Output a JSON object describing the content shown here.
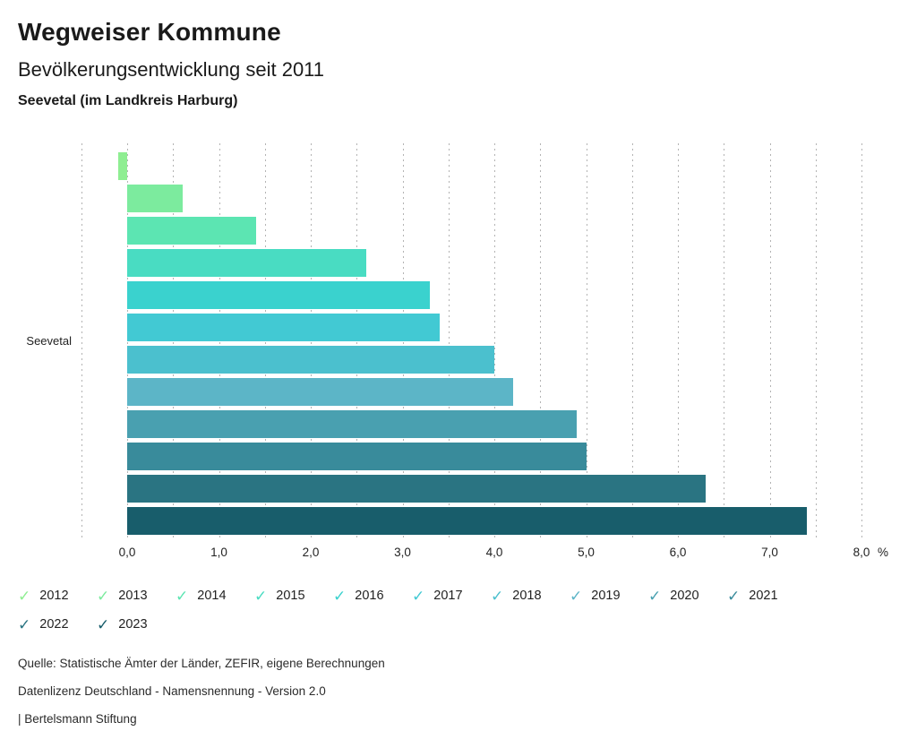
{
  "header": {
    "title": "Wegweiser Kommune",
    "subtitle": "Bevölkerungsentwicklung seit 2011",
    "region": "Seevetal (im Landkreis Harburg)"
  },
  "chart_data": {
    "type": "bar",
    "orientation": "horizontal",
    "title": "Bevölkerungsentwicklung seit 2011",
    "group_label": "Seevetal",
    "categories": [
      "2012",
      "2013",
      "2014",
      "2015",
      "2016",
      "2017",
      "2018",
      "2019",
      "2020",
      "2021",
      "2022",
      "2023"
    ],
    "values": [
      -0.1,
      0.6,
      1.4,
      2.6,
      3.3,
      3.4,
      4.0,
      4.2,
      4.9,
      5.0,
      6.3,
      7.4
    ],
    "colors": [
      "#8fee92",
      "#7ceb9e",
      "#5ce5b2",
      "#49dcc2",
      "#3ad2ce",
      "#42c9d3",
      "#4bc0ce",
      "#5cb5c7",
      "#49a0b0",
      "#398b9b",
      "#2a7482",
      "#185d6b"
    ],
    "unit_label": "%",
    "xlim": [
      -0.5,
      8.0
    ],
    "x_tick_values": [
      0,
      1,
      2,
      3,
      4,
      5,
      6,
      7,
      8
    ],
    "x_tick_labels": [
      "0,0",
      "1,0",
      "2,0",
      "3,0",
      "4,0",
      "5,0",
      "6,0",
      "7,0",
      "8,0"
    ],
    "gridlines": {
      "style": "dotted-vertical",
      "interval": 0.5,
      "color": "#b3b3b3"
    },
    "legend_position": "bottom"
  },
  "legend": {
    "items": [
      {
        "label": "2012",
        "color": "#8fee92"
      },
      {
        "label": "2013",
        "color": "#7ceb9e"
      },
      {
        "label": "2014",
        "color": "#5ce5b2"
      },
      {
        "label": "2015",
        "color": "#49dcc2"
      },
      {
        "label": "2016",
        "color": "#3ad2ce"
      },
      {
        "label": "2017",
        "color": "#42c9d3"
      },
      {
        "label": "2018",
        "color": "#4bc0ce"
      },
      {
        "label": "2019",
        "color": "#5cb5c7"
      },
      {
        "label": "2020",
        "color": "#49a0b0"
      },
      {
        "label": "2021",
        "color": "#398b9b"
      },
      {
        "label": "2022",
        "color": "#2a7482"
      },
      {
        "label": "2023",
        "color": "#185d6b"
      }
    ],
    "check_icon": "✓"
  },
  "footer": {
    "source": "Quelle: Statistische Ämter der Länder, ZEFIR, eigene Berechnungen",
    "license": "Datenlizenz Deutschland - Namensnennung - Version 2.0",
    "attribution": "| Bertelsmann Stiftung"
  }
}
